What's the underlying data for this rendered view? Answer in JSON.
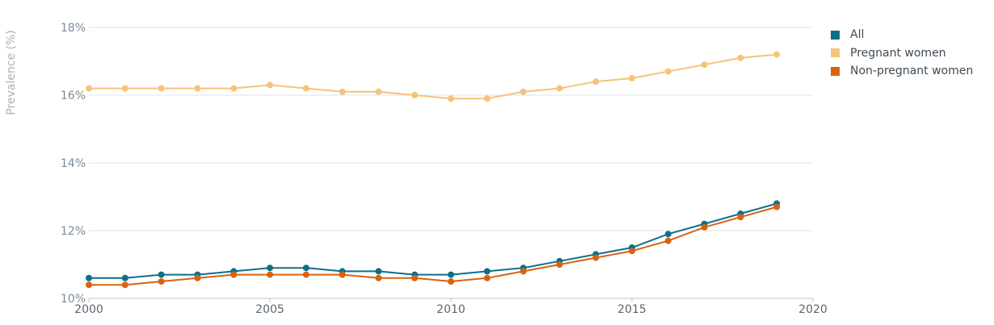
{
  "chart_data": {
    "type": "line",
    "title": "",
    "ylabel": "Prevalence (%)",
    "xlabel": "",
    "xlim": [
      2000,
      2020
    ],
    "ylim": [
      10,
      18
    ],
    "x_ticks": [
      2000,
      2005,
      2010,
      2015,
      2020
    ],
    "x_tick_labels": [
      "2000",
      "2005",
      "2010",
      "2015",
      "2020"
    ],
    "y_ticks": [
      10,
      12,
      14,
      16,
      18
    ],
    "y_tick_labels": [
      "10%",
      "12%",
      "14%",
      "16%",
      "18%"
    ],
    "grid": "horizontal",
    "legend_position": "top-right",
    "x": [
      2000,
      2001,
      2002,
      2003,
      2004,
      2005,
      2006,
      2007,
      2008,
      2009,
      2010,
      2011,
      2012,
      2013,
      2014,
      2015,
      2016,
      2017,
      2018,
      2019
    ],
    "series": [
      {
        "name": "All",
        "color": "#0e6f8a",
        "values": [
          10.6,
          10.6,
          10.7,
          10.7,
          10.8,
          10.9,
          10.9,
          10.8,
          10.8,
          10.7,
          10.7,
          10.8,
          10.9,
          11.1,
          11.3,
          11.5,
          11.9,
          12.2,
          12.5,
          12.8
        ]
      },
      {
        "name": "Pregnant women",
        "color": "#f7c27a",
        "values": [
          16.2,
          16.2,
          16.2,
          16.2,
          16.2,
          16.3,
          16.2,
          16.1,
          16.1,
          16.0,
          15.9,
          15.9,
          16.1,
          16.2,
          16.4,
          16.5,
          16.7,
          16.9,
          17.1,
          17.2
        ]
      },
      {
        "name": "Non-pregnant women",
        "color": "#d9620f",
        "values": [
          10.4,
          10.4,
          10.5,
          10.6,
          10.7,
          10.7,
          10.7,
          10.7,
          10.6,
          10.6,
          10.5,
          10.6,
          10.8,
          11.0,
          11.2,
          11.4,
          11.7,
          12.1,
          12.4,
          12.7
        ]
      }
    ]
  }
}
